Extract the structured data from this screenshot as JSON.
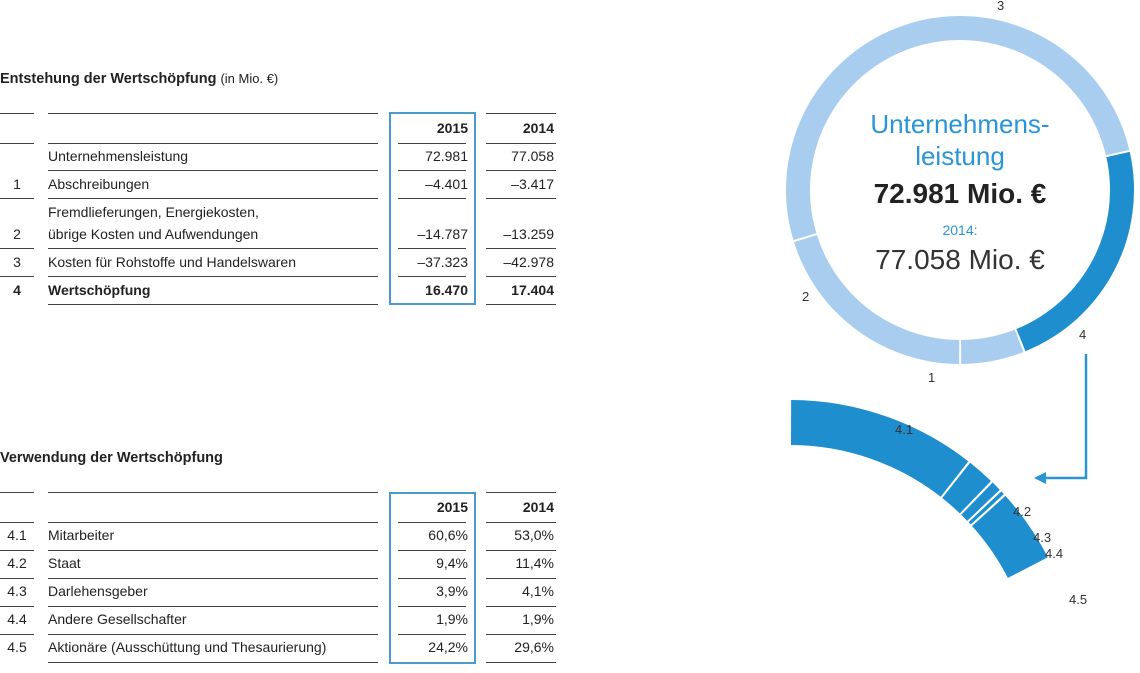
{
  "entstehung": {
    "title": "Entstehung der Wertschöpfung",
    "unit": "(in Mio. €)",
    "col_2015": "2015",
    "col_2014": "2014",
    "rows": [
      {
        "num": "",
        "label": "Unternehmensleistung",
        "v2015": "72.981",
        "v2014": "77.058",
        "bold": false
      },
      {
        "num": "1",
        "label": "Abschreibungen",
        "v2015": "–4.401",
        "v2014": "–3.417",
        "bold": false
      },
      {
        "num": "2",
        "label_line1": "Fremdlieferungen, Energiekosten,",
        "label": "übrige Kosten und Aufwendungen",
        "v2015": "–14.787",
        "v2014": "–13.259",
        "bold": false
      },
      {
        "num": "3",
        "label": "Kosten für Rohstoffe und Handelswaren",
        "v2015": "–37.323",
        "v2014": "–42.978",
        "bold": false
      },
      {
        "num": "4",
        "label": "Wertschöpfung",
        "v2015": "16.470",
        "v2014": "17.404",
        "bold": true
      }
    ]
  },
  "verwendung": {
    "title": "Verwendung der Wertschöpfung",
    "col_2015": "2015",
    "col_2014": "2014",
    "rows": [
      {
        "num": "4.1",
        "label": "Mitarbeiter",
        "v2015": "60,6%",
        "v2014": "53,0%"
      },
      {
        "num": "4.2",
        "label": "Staat",
        "v2015": "9,4%",
        "v2014": "11,4%"
      },
      {
        "num": "4.3",
        "label": "Darlehensgeber",
        "v2015": "3,9%",
        "v2014": "4,1%"
      },
      {
        "num": "4.4",
        "label": "Andere Gesellschafter",
        "v2015": "1,9%",
        "v2014": "1,9%"
      },
      {
        "num": "4.5",
        "label": "Aktionäre (Ausschüttung und Thesaurierung)",
        "v2015": "24,2%",
        "v2014": "29,6%"
      }
    ]
  },
  "donut": {
    "title_line1": "Unternehmens-",
    "title_line2": "leistung",
    "value": "72.981 Mio. €",
    "prev_label": "2014:",
    "prev_value": "77.058 Mio. €",
    "segments": [
      {
        "label": "1",
        "value": 4401
      },
      {
        "label": "2",
        "value": 14787
      },
      {
        "label": "3",
        "value": 37323
      },
      {
        "label": "4",
        "value": 16470
      }
    ]
  },
  "arc": {
    "segments": [
      {
        "label": "4.1",
        "value": 60.6
      },
      {
        "label": "4.2",
        "value": 9.4
      },
      {
        "label": "4.3",
        "value": 3.9
      },
      {
        "label": "4.4",
        "value": 1.9
      },
      {
        "label": "4.5",
        "value": 24.2
      }
    ]
  },
  "colors": {
    "light": "#a9cdee",
    "dark": "#1f8ece",
    "accent": "#2a95d6",
    "border": "#4a9ccc"
  }
}
